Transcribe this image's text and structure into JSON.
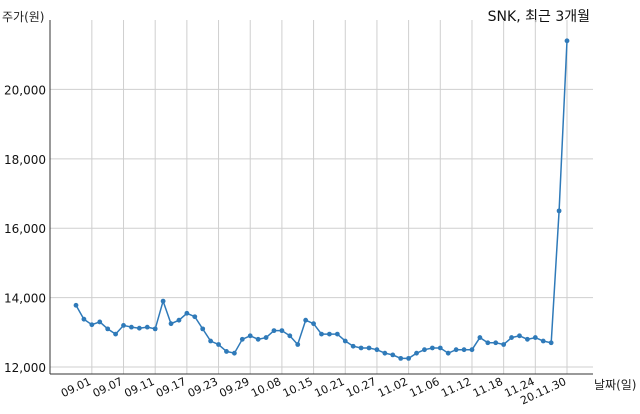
{
  "chart_data": {
    "type": "line",
    "title": "SNK, 최근 3개월",
    "ylabel": "주가(원)",
    "xlabel": "날짜(일)",
    "ylim": [
      11800,
      22000
    ],
    "y_ticks": [
      12000,
      14000,
      16000,
      18000,
      20000
    ],
    "y_tick_labels": [
      "12,000",
      "14,000",
      "16,000",
      "18,000",
      "20,000"
    ],
    "x_tick_labels": [
      "09.01",
      "09.07",
      "09.11",
      "09.17",
      "09.23",
      "09.29",
      "10.08",
      "10.15",
      "10.21",
      "10.27",
      "11.02",
      "11.06",
      "11.12",
      "11.18",
      "11.24",
      "20.11.30"
    ],
    "x_tick_index": [
      2,
      6,
      10,
      14,
      18,
      22,
      26,
      30,
      34,
      38,
      42,
      46,
      50,
      54,
      58,
      62
    ],
    "grid": true,
    "color": "#2f7ab9",
    "values": [
      13780,
      13380,
      13220,
      13300,
      13100,
      12950,
      13200,
      13150,
      13120,
      13150,
      13100,
      13900,
      13250,
      13350,
      13550,
      13450,
      13100,
      12750,
      12650,
      12450,
      12400,
      12800,
      12900,
      12800,
      12850,
      13050,
      13050,
      12900,
      12650,
      13350,
      13250,
      12950,
      12950,
      12950,
      12750,
      12600,
      12550,
      12550,
      12500,
      12400,
      12350,
      12250,
      12250,
      12400,
      12500,
      12550,
      12550,
      12400,
      12500,
      12500,
      12500,
      12850,
      12700,
      12700,
      12650,
      12850,
      12900,
      12800,
      12850,
      12750,
      12700,
      16500,
      21400
    ]
  }
}
